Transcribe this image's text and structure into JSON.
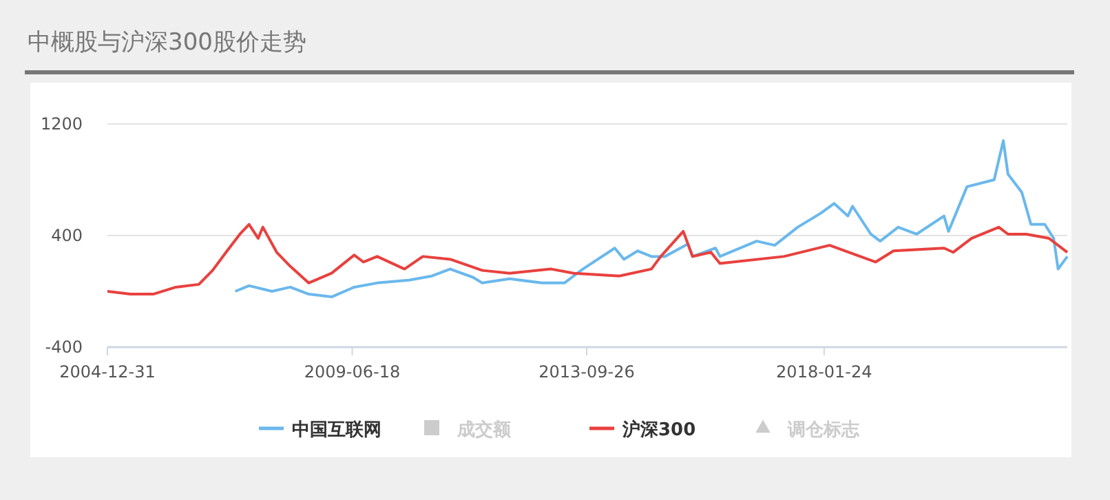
{
  "chart_data": {
    "type": "line",
    "title": "中概股与沪深300股价走势",
    "xlim": [
      "2004-12-31",
      "2022-07"
    ],
    "xticks": [
      "2004-12-31",
      "2009-06-18",
      "2013-09-26",
      "2018-01-24"
    ],
    "ylim": [
      -400,
      1200
    ],
    "yticks": [
      -400,
      400,
      1200
    ],
    "grid": "y",
    "legend": "bottom",
    "marker": "none",
    "line_style": "solid",
    "series": [
      {
        "name": "中国互联网",
        "color": "#6ab8ec",
        "x": [
          "2007-05",
          "2007-08",
          "2008-01",
          "2008-05",
          "2008-09",
          "2009-02",
          "2009-07",
          "2009-12",
          "2010-07",
          "2010-12",
          "2011-04",
          "2011-09",
          "2011-11",
          "2012-05",
          "2012-12",
          "2013-05",
          "2013-07",
          "2013-09",
          "2014-04",
          "2014-06",
          "2014-09",
          "2014-12",
          "2015-03",
          "2015-08",
          "2015-09",
          "2016-02",
          "2016-03",
          "2016-11",
          "2017-03",
          "2017-08",
          "2018-01",
          "2018-04",
          "2018-07",
          "2018-08",
          "2018-12",
          "2019-02",
          "2019-06",
          "2019-10",
          "2020-04",
          "2020-05",
          "2020-09",
          "2021-03",
          "2021-05",
          "2021-06",
          "2021-09",
          "2021-11",
          "2022-02",
          "2022-04",
          "2022-05",
          "2022-07"
        ],
        "values": [
          0,
          40,
          0,
          30,
          -20,
          -40,
          30,
          60,
          80,
          110,
          160,
          100,
          60,
          90,
          60,
          60,
          110,
          160,
          310,
          230,
          290,
          250,
          250,
          340,
          250,
          310,
          250,
          360,
          330,
          460,
          560,
          630,
          540,
          610,
          410,
          360,
          460,
          410,
          540,
          430,
          750,
          800,
          1080,
          840,
          710,
          480,
          480,
          380,
          160,
          250
        ]
      },
      {
        "name": "成交额",
        "type": "bar",
        "color": "#cccccc"
      },
      {
        "name": "沪深300",
        "color": "#e8413e",
        "x": [
          "2004-12-31",
          "2005-06",
          "2005-11",
          "2006-04",
          "2006-09",
          "2006-12",
          "2007-03",
          "2007-06",
          "2007-08",
          "2007-10",
          "2007-11",
          "2008-02",
          "2008-05",
          "2008-09",
          "2009-02",
          "2009-07",
          "2009-09",
          "2009-12",
          "2010-06",
          "2010-10",
          "2011-04",
          "2011-11",
          "2012-05",
          "2013-02",
          "2013-07",
          "2014-05",
          "2014-12",
          "2015-02",
          "2015-07",
          "2015-09",
          "2016-01",
          "2016-03",
          "2017-05",
          "2018-03",
          "2019-01",
          "2019-05",
          "2020-04",
          "2020-06",
          "2020-10",
          "2021-04",
          "2021-06",
          "2021-10",
          "2022-03",
          "2022-07"
        ],
        "values": [
          0,
          -20,
          -20,
          30,
          50,
          150,
          280,
          410,
          480,
          380,
          460,
          280,
          180,
          60,
          130,
          260,
          210,
          250,
          160,
          250,
          230,
          150,
          130,
          160,
          130,
          110,
          160,
          250,
          430,
          250,
          280,
          200,
          250,
          330,
          210,
          290,
          310,
          280,
          380,
          460,
          410,
          410,
          380,
          280
        ]
      },
      {
        "name": "调仓标志",
        "type": "scatter",
        "marker": "triangle",
        "color": "#cccccc"
      }
    ]
  }
}
